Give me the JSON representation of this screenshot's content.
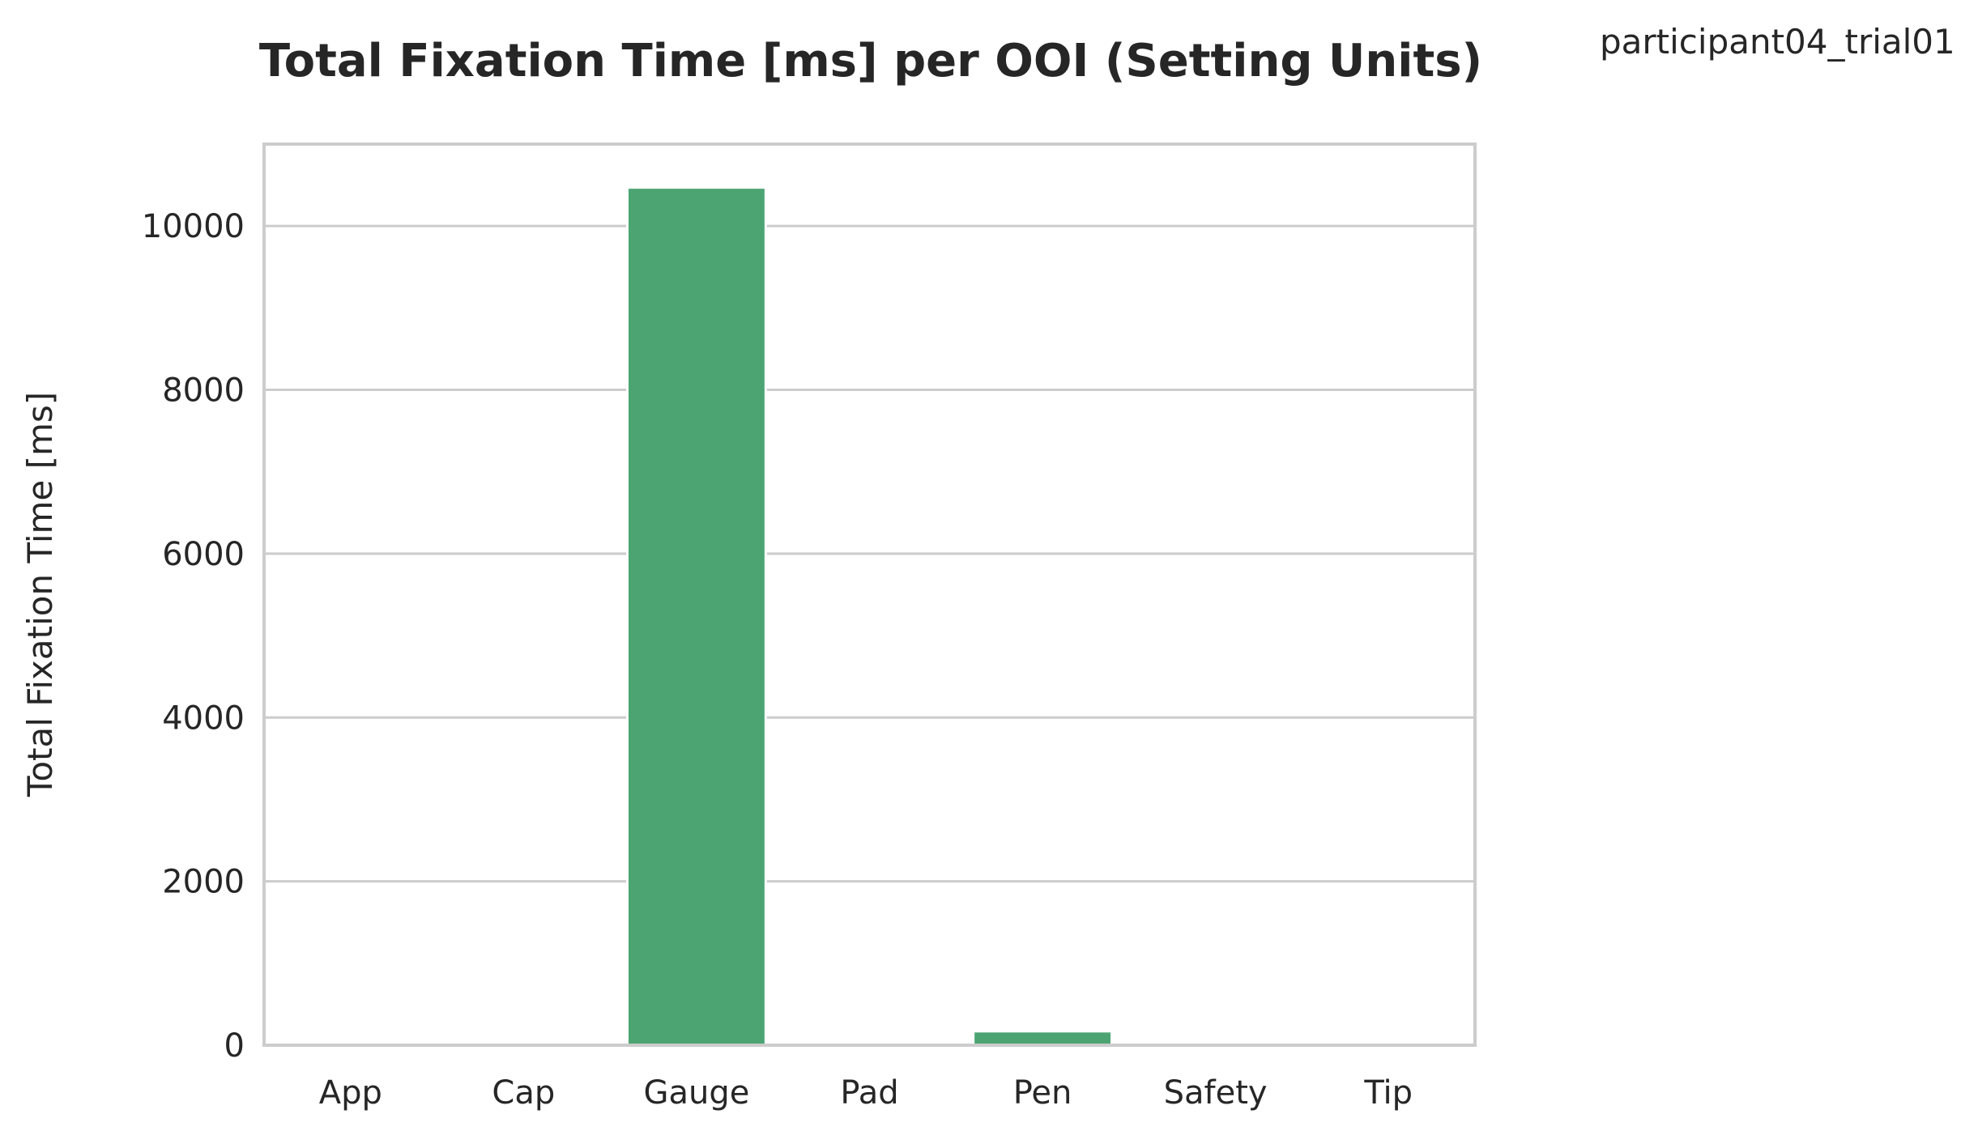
{
  "chart_data": {
    "type": "bar",
    "title": "Total Fixation Time [ms] per OOI (Setting Units)",
    "subtitle": "participant04_trial01",
    "xlabel": "",
    "ylabel": "Total Fixation Time [ms]",
    "categories": [
      "App",
      "Cap",
      "Gauge",
      "Pad",
      "Pen",
      "Safety",
      "Tip"
    ],
    "values": [
      0,
      0,
      10470,
      0,
      170,
      0,
      0
    ],
    "ylim": [
      0,
      11000
    ],
    "yticks": [
      0,
      2000,
      4000,
      6000,
      8000,
      10000
    ],
    "grid": "horizontal",
    "legend": "none",
    "colors": {
      "bar": "#4ca473",
      "grid": "#cccccc",
      "frame": "#cccccc",
      "text": "#262626"
    }
  }
}
